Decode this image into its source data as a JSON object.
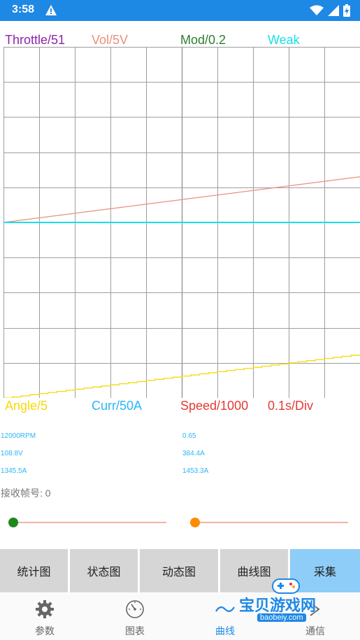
{
  "status_bar": {
    "time": "3:58",
    "icons": [
      "warning-icon",
      "wifi-icon",
      "signal-icon",
      "battery-charging-icon"
    ]
  },
  "legend_top": {
    "throttle": "Throttle/51",
    "vol": "Vol/5V",
    "mod": "Mod/0.2",
    "weak": "Weak"
  },
  "legend_bottom": {
    "angle": "Angle/5",
    "curr": "Curr/50A",
    "speed": "Speed/1000",
    "timebase": "0.1s/Div"
  },
  "colors": {
    "throttle": "#8e24aa",
    "vol": "#e8907c",
    "mod": "#2e7d32",
    "weak": "#18e0e8",
    "angle": "#f5d90a",
    "curr": "#29b6f6",
    "speed": "#e53935",
    "accent": "#1e88e5"
  },
  "chart_data": {
    "type": "line",
    "grid": true,
    "x_divisions": 10,
    "y_divisions": 10,
    "timebase": "0.1s/Div",
    "series": [
      {
        "name": "Vol/5V",
        "color": "#e8907c",
        "points": [
          [
            0,
            5.0
          ],
          [
            10,
            6.3
          ]
        ]
      },
      {
        "name": "Weak",
        "color": "#18e0e8",
        "points": [
          [
            0,
            5.0
          ],
          [
            10,
            5.0
          ]
        ]
      },
      {
        "name": "Angle/5",
        "color": "#f5d90a",
        "step": true,
        "points": [
          [
            0,
            0.0
          ],
          [
            10,
            1.25
          ]
        ]
      }
    ]
  },
  "readouts": {
    "left": [
      "12000RPM",
      "108.8V",
      "1345.5A"
    ],
    "right": [
      "0.65",
      "384.4A",
      "1453.3A"
    ]
  },
  "frame_label": "接收帧号: 0",
  "sliders": [
    {
      "name": "slider-left",
      "thumb_color": "#1b8a1b",
      "value": 0
    },
    {
      "name": "slider-right",
      "thumb_color": "#ff8c00",
      "value": 0
    }
  ],
  "buttons": [
    "统计图",
    "状态图",
    "动态图",
    "曲线图",
    "采集"
  ],
  "nav": [
    {
      "label": "参数",
      "icon": "gear-icon"
    },
    {
      "label": "图表",
      "icon": "gauge-icon"
    },
    {
      "label": "曲线",
      "icon": "wave-icon"
    },
    {
      "label": "通信",
      "icon": "comm-icon"
    }
  ],
  "watermark": {
    "main": "宝贝游戏网",
    "sub": "baobeiy.com"
  }
}
